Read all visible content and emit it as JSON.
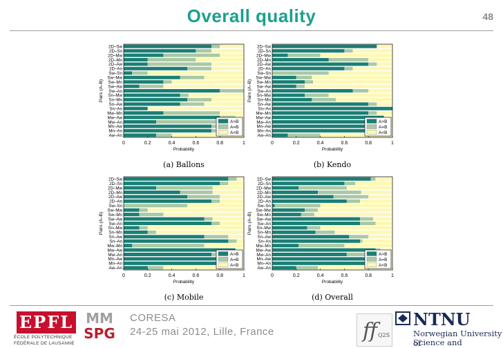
{
  "slide": {
    "title": "Overall quality",
    "page_number": "48",
    "conference_name": "CORESA",
    "conference_place": "24-25 mai 2012, Lille, France"
  },
  "logos": {
    "epfl_mark": "EPFL",
    "epfl_line1": "ÉCOLE POLYTECHNIQUE",
    "epfl_line2": "FÉDÉRALE DE LAUSANNE",
    "mmspg_top": "MM",
    "mmspg_bottom": "SPG",
    "q2s_label": "Q2S",
    "ntnu_name": "NTNU",
    "ntnu_line1": "Norwegian University of",
    "ntnu_line2": "Science and Technology"
  },
  "colors": {
    "a_better": "#1a7f74",
    "equal": "#a9c9a4",
    "b_better": "#fdf8b4",
    "title": "#1aa08e"
  },
  "chart_data": [
    {
      "type": "bar",
      "orientation": "horizontal-stacked",
      "caption": "(a)  Ballons",
      "xlabel": "Probability",
      "ylabel": "Pairs (A–B)",
      "xlim": [
        0,
        1
      ],
      "xticks": [
        "0",
        "0.2",
        "0.4",
        "0.6",
        "0.8",
        "1"
      ],
      "legend": [
        "A>B",
        "A=B",
        "A<B"
      ],
      "legend_position": "bottom-right",
      "categories": [
        "2D–Sw",
        "2D–Sn",
        "2D–Mw",
        "2D–Mn",
        "2D–Aw",
        "2D–An",
        "Sw–Sn",
        "Sw–Mw",
        "Sw–Mn",
        "Sw–Aw",
        "Sw–An",
        "Sn–Mw",
        "Sn–Mn",
        "Sn–Aw",
        "Sn–An",
        "Mw–Mn",
        "Mw–Aw",
        "Mw–An",
        "Mn–Aw",
        "Mn–An",
        "Aw–An"
      ],
      "series": [
        {
          "name": "A>B",
          "values": [
            0.73,
            0.6,
            0.33,
            0.2,
            0.2,
            0.53,
            0.07,
            0.47,
            0.33,
            0.13,
            0.8,
            0.47,
            0.53,
            0.47,
            0.2,
            0.33,
            0.8,
            0.27,
            0.73,
            0.73,
            0.27
          ]
        },
        {
          "name": "A=B",
          "values": [
            0.07,
            0.13,
            0.47,
            0.4,
            0.53,
            0.2,
            0.13,
            0.2,
            0.07,
            0.2,
            0.2,
            0.07,
            0.2,
            0.2,
            0.0,
            0.47,
            0.13,
            0.6,
            0.07,
            0.07,
            0.13
          ]
        },
        {
          "name": "A<B",
          "values": [
            0.2,
            0.27,
            0.2,
            0.4,
            0.27,
            0.27,
            0.8,
            0.33,
            0.6,
            0.67,
            0.0,
            0.46,
            0.27,
            0.33,
            0.8,
            0.2,
            0.07,
            0.13,
            0.2,
            0.2,
            0.6
          ]
        }
      ]
    },
    {
      "type": "bar",
      "orientation": "horizontal-stacked",
      "caption": "(b)  Kendo",
      "xlabel": "Probability",
      "ylabel": "Pairs (A–B)",
      "xlim": [
        0,
        1
      ],
      "xticks": [
        "0",
        "0.2",
        "0.4",
        "0.6",
        "0.8",
        "1"
      ],
      "legend": [
        "A>B",
        "A=B",
        "A<B"
      ],
      "legend_position": "bottom-right",
      "categories": [
        "2D–Sw",
        "2D–Sn",
        "2D–Mw",
        "2D–Mn",
        "2D–Aw",
        "2D–An",
        "Sw–Sn",
        "Sw–Mw",
        "Sw–Mn",
        "Sw–Aw",
        "Sw–An",
        "Sn–Mw",
        "Sn–Mn",
        "Sn–Aw",
        "Sn–An",
        "Mw–Mn",
        "Mw–Aw",
        "Mw–An",
        "Mn–Aw",
        "Mn–An",
        "Aw–An"
      ],
      "series": [
        {
          "name": "A>B",
          "values": [
            0.87,
            0.6,
            0.13,
            0.47,
            0.8,
            0.6,
            0.0,
            0.2,
            0.27,
            0.2,
            0.67,
            0.27,
            0.33,
            0.8,
            1.0,
            0.8,
            0.93,
            0.8,
            0.8,
            0.8,
            0.13
          ]
        },
        {
          "name": "A=B",
          "values": [
            0.0,
            0.07,
            0.27,
            0.33,
            0.07,
            0.07,
            0.47,
            0.13,
            0.07,
            0.07,
            0.13,
            0.2,
            0.2,
            0.07,
            0.0,
            0.07,
            0.0,
            0.07,
            0.07,
            0.07,
            0.27
          ]
        },
        {
          "name": "A<B",
          "values": [
            0.13,
            0.33,
            0.6,
            0.2,
            0.13,
            0.33,
            0.53,
            0.67,
            0.66,
            0.73,
            0.2,
            0.53,
            0.47,
            0.13,
            0.0,
            0.13,
            0.07,
            0.13,
            0.13,
            0.13,
            0.6
          ]
        }
      ]
    },
    {
      "type": "bar",
      "orientation": "horizontal-stacked",
      "caption": "(c)  Mobile",
      "xlabel": "Probability",
      "ylabel": "Pairs (A–B)",
      "xlim": [
        0,
        1
      ],
      "xticks": [
        "0",
        "0.2",
        "0.4",
        "0.6",
        "0.8",
        "1"
      ],
      "legend": [
        "A>B",
        "A=B",
        "A<B"
      ],
      "legend_position": "bottom-right",
      "categories": [
        "2D–Sw",
        "2D–Sn",
        "2D–Mw",
        "2D–Mn",
        "2D–Aw",
        "2D–An",
        "Sw–Sn",
        "Sw–Mw",
        "Sw–Mn",
        "Sw–Aw",
        "Sw–An",
        "Sn–Mw",
        "Sn–Mn",
        "Sn–Aw",
        "Sn–An",
        "Mw–Mn",
        "Mw–Aw",
        "Mw–An",
        "Mn–Aw",
        "Mn–An",
        "Aw–An"
      ],
      "series": [
        {
          "name": "A>B",
          "values": [
            0.87,
            0.8,
            0.27,
            0.47,
            0.53,
            0.73,
            0.0,
            0.13,
            0.13,
            0.67,
            0.73,
            0.13,
            0.2,
            0.67,
            0.87,
            0.07,
            0.93,
            0.73,
            0.8,
            0.8,
            0.2
          ]
        },
        {
          "name": "A=B",
          "values": [
            0.07,
            0.07,
            0.47,
            0.27,
            0.27,
            0.07,
            0.53,
            0.07,
            0.2,
            0.07,
            0.07,
            0.07,
            0.07,
            0.2,
            0.07,
            0.6,
            0.0,
            0.07,
            0.07,
            0.07,
            0.13
          ]
        },
        {
          "name": "A<B",
          "values": [
            0.06,
            0.13,
            0.26,
            0.26,
            0.2,
            0.2,
            0.47,
            0.8,
            0.67,
            0.26,
            0.2,
            0.8,
            0.73,
            0.13,
            0.06,
            0.33,
            0.07,
            0.2,
            0.13,
            0.13,
            0.67
          ]
        }
      ]
    },
    {
      "type": "bar",
      "orientation": "horizontal-stacked",
      "caption": "(d)  Overall",
      "xlabel": "Probability",
      "ylabel": "Pairs (A–B)",
      "xlim": [
        0,
        1
      ],
      "xticks": [
        "0",
        "0.2",
        "0.4",
        "0.6",
        "0.8",
        "1"
      ],
      "legend": [
        "A>B",
        "A=B",
        "A<B"
      ],
      "legend_position": "bottom-right",
      "categories": [
        "2D–Sw",
        "2D–Sn",
        "2D–Mw",
        "2D–Mn",
        "2D–Aw",
        "2D–An",
        "Sw–Sn",
        "Sw–Mw",
        "Sw–Mn",
        "Sw–Aw",
        "Sw–An",
        "Sn–Mw",
        "Sn–Mn",
        "Sn–Aw",
        "Sn–An",
        "Mw–Mn",
        "Mw–Aw",
        "Mw–An",
        "Mn–Aw",
        "Mn–An",
        "Aw–An"
      ],
      "series": [
        {
          "name": "A>B",
          "values": [
            0.82,
            0.6,
            0.22,
            0.38,
            0.51,
            0.62,
            0.02,
            0.27,
            0.24,
            0.73,
            0.73,
            0.29,
            0.36,
            0.64,
            0.73,
            0.22,
            0.86,
            0.62,
            0.78,
            0.78,
            0.2
          ]
        },
        {
          "name": "A=B",
          "values": [
            0.04,
            0.09,
            0.4,
            0.36,
            0.29,
            0.11,
            0.38,
            0.11,
            0.11,
            0.11,
            0.13,
            0.11,
            0.16,
            0.16,
            0.02,
            0.38,
            0.04,
            0.24,
            0.07,
            0.07,
            0.18
          ]
        },
        {
          "name": "A<B",
          "values": [
            0.14,
            0.31,
            0.38,
            0.26,
            0.2,
            0.27,
            0.6,
            0.62,
            0.65,
            0.16,
            0.14,
            0.6,
            0.48,
            0.2,
            0.25,
            0.4,
            0.1,
            0.14,
            0.15,
            0.15,
            0.62
          ]
        }
      ]
    }
  ]
}
